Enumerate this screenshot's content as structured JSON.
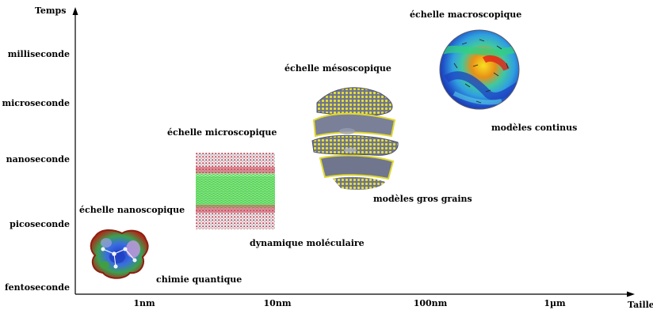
{
  "axes": {
    "y_label": "Temps",
    "x_label": "Taille",
    "y_ticks": [
      "fentoseconde",
      "picoseconde",
      "nanoseconde",
      "microseconde",
      "milliseconde"
    ],
    "x_ticks": [
      "1nm",
      "10nm",
      "100nm",
      "1µm"
    ]
  },
  "scales": [
    {
      "title": "échelle nanoscopique",
      "method": "chimie quantique",
      "illustration": "molecule-electrostatic-surface"
    },
    {
      "title": "échelle microscopique",
      "method": "dynamique moléculaire",
      "illustration": "lipid-bilayer-atomistic"
    },
    {
      "title": "échelle mésoscopique",
      "method": "modèles gros grains",
      "illustration": "coarse-grained-membrane-stack"
    },
    {
      "title": "échelle macroscopique",
      "method": "modèles continus",
      "illustration": "continuum-sphere-field"
    }
  ],
  "colors": {
    "axis": "#000000",
    "membrane_green": "#3fd23f",
    "headgroup_red": "#c03040",
    "coarse_grain_yellow": "#e8e030",
    "coarse_grain_body": "#6e7590"
  }
}
